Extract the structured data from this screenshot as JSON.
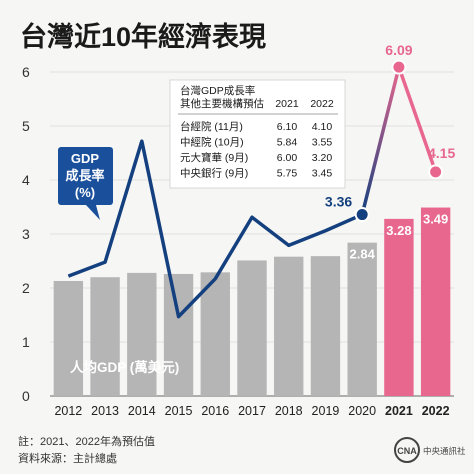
{
  "title": "台灣近10年經濟表現",
  "chart_data": {
    "type": "bar",
    "x": [
      "2012",
      "2013",
      "2014",
      "2015",
      "2016",
      "2017",
      "2018",
      "2019",
      "2020",
      "2021",
      "2022"
    ],
    "forecast_years": [
      "2021",
      "2022"
    ],
    "ylim": [
      0,
      6
    ],
    "yticks": [
      "0",
      "1",
      "2",
      "3",
      "4",
      "5",
      "6"
    ],
    "series": [
      {
        "name": "人均GDP (萬美元)",
        "kind": "bar",
        "values": [
          2.13,
          2.2,
          2.28,
          2.26,
          2.29,
          2.51,
          2.58,
          2.59,
          2.84,
          3.28,
          3.49
        ],
        "value_labels": [
          "",
          "",
          "",
          "",
          "",
          "",
          "",
          "",
          "2.84",
          "3.28",
          "3.49"
        ]
      },
      {
        "name": "GDP 成長率 (%)",
        "kind": "line",
        "values": [
          2.22,
          2.48,
          4.72,
          1.47,
          2.17,
          3.31,
          2.79,
          3.06,
          3.36,
          6.09,
          4.15
        ],
        "value_labels": [
          "",
          "",
          "",
          "",
          "",
          "",
          "",
          "",
          "3.36",
          "6.09",
          "4.15"
        ]
      }
    ],
    "legend": {
      "gdp_line_lines": [
        "GDP",
        "成長率",
        "(%)"
      ],
      "per_capita_label": "人均GDP (萬美元)"
    },
    "colors": {
      "bar_actual": "#b5b5b5",
      "bar_forecast": "#e8678f",
      "line_actual": "#14407f",
      "line_forecast": "#e8678f",
      "legend_box": "#1a4f9b"
    },
    "forecast_table": {
      "header": [
        "台灣GDP成長率",
        "其他主要機構預估",
        "2021",
        "2022"
      ],
      "rows": [
        [
          "台經院 (11月)",
          "6.10",
          "4.10"
        ],
        [
          "中經院 (10月)",
          "5.84",
          "3.55"
        ],
        [
          "元大寶華 (9月)",
          "6.00",
          "3.20"
        ],
        [
          "中央銀行 (9月)",
          "5.75",
          "3.45"
        ]
      ]
    }
  },
  "footer": {
    "note": "註：2021、2022年為預估值",
    "source": "資料來源：主計總處",
    "logo": "CNA",
    "logo_sub": "中央通訊社"
  }
}
